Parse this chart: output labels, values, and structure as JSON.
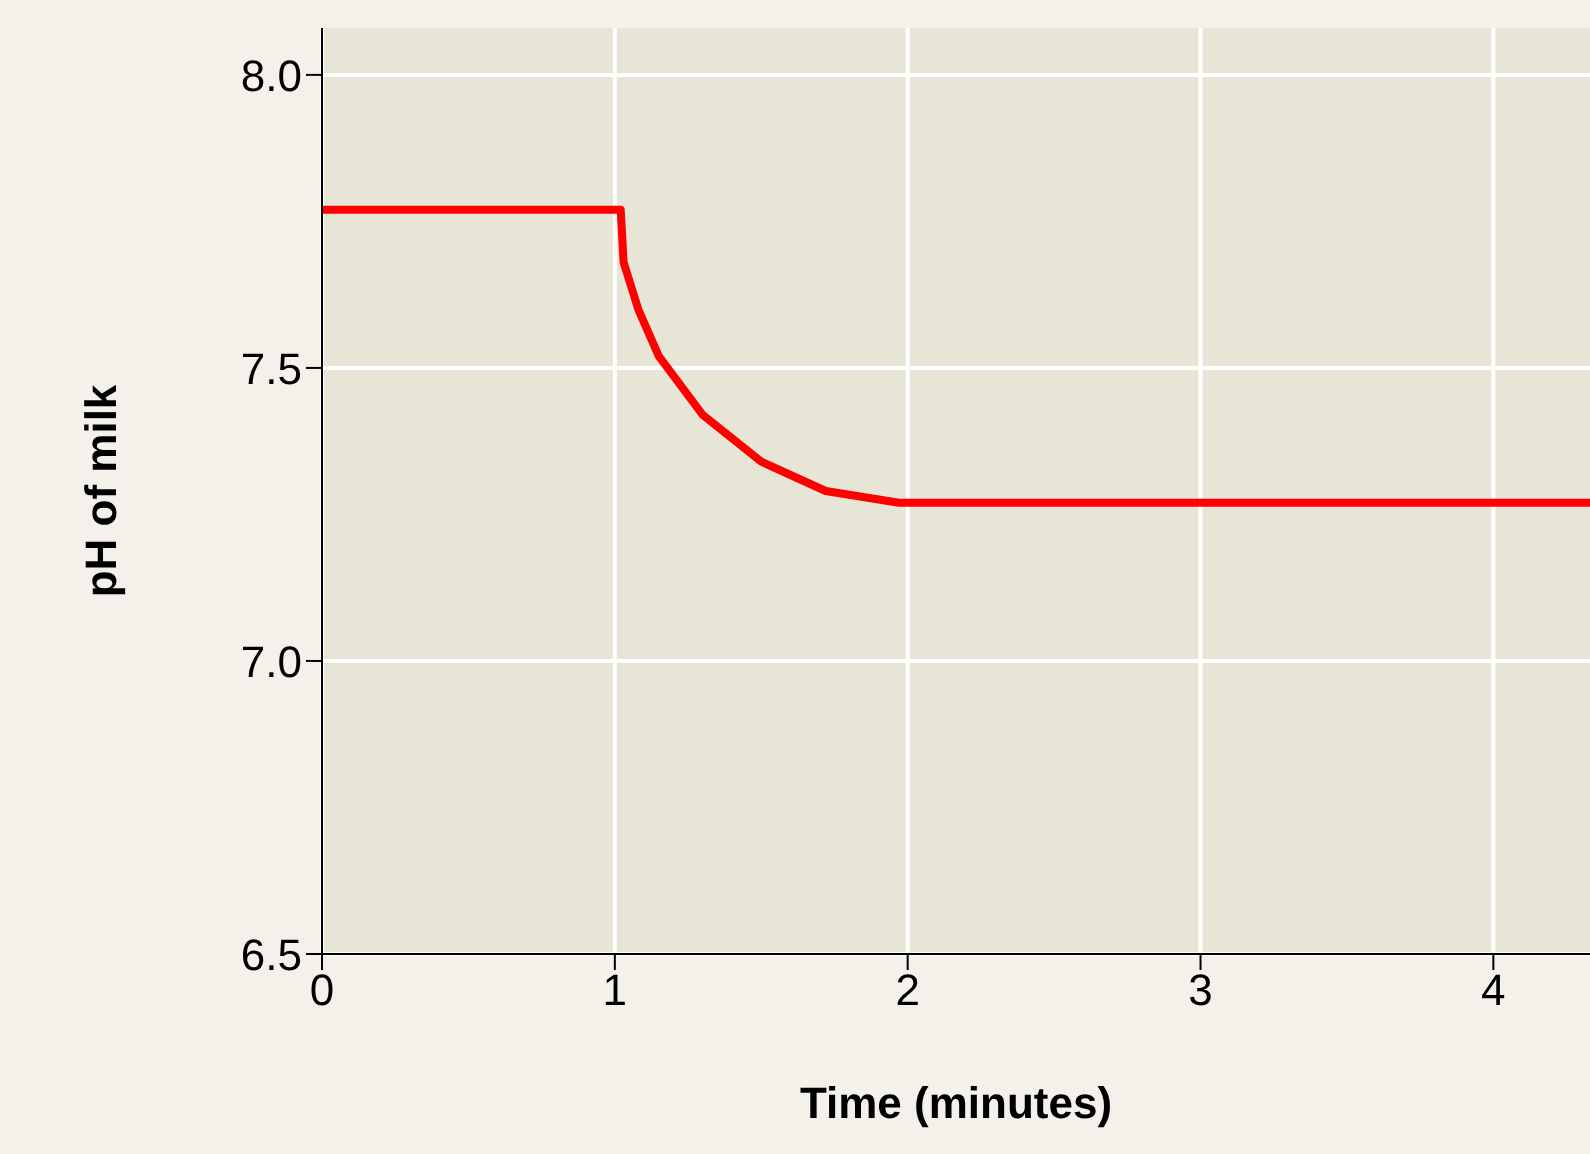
{
  "chart_data": {
    "type": "line",
    "xlabel": "Time (minutes)",
    "ylabel": "pH of milk",
    "series": [
      {
        "color": "#ff0000",
        "x": [
          0,
          1.02,
          1.03,
          1.08,
          1.15,
          1.3,
          1.5,
          1.72,
          1.97,
          4.33
        ],
        "values": [
          7.77,
          7.77,
          7.68,
          7.6,
          7.52,
          7.42,
          7.34,
          7.29,
          7.27,
          7.27
        ]
      }
    ],
    "xlim": [
      0,
      4.33
    ],
    "xticks": [
      0,
      1,
      2,
      3,
      4
    ],
    "ylim": [
      6.5,
      8.08
    ],
    "yticks": [
      {
        "value": 6.5,
        "label": "6.5"
      },
      {
        "value": 7,
        "label": "7.0"
      },
      {
        "value": 7.5,
        "label": "7.5"
      },
      {
        "value": 8,
        "label": "8.0"
      }
    ],
    "grid": true,
    "marker": "none",
    "line_style": "solid"
  }
}
